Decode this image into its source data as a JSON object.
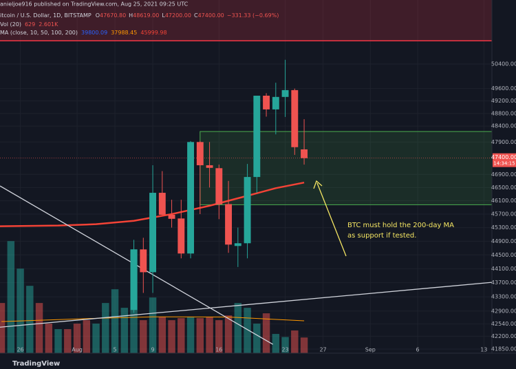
{
  "chart_data": {
    "type": "candlestick",
    "header": {
      "publisher": "anieljoe916 published on TradingView.com, Aug 25, 2021 09:25 UTC",
      "symbol": "itcoin / U.S. Dollar, 1D, BITSTAMP",
      "ohlc": [
        {
          "key": "O",
          "value": "47670.80"
        },
        {
          "key": "H",
          "value": "48619.00"
        },
        {
          "key": "L",
          "value": "47200.00"
        },
        {
          "key": "C",
          "value": "47400.00"
        }
      ],
      "change": "−331.33 (−0.69%)",
      "volume": [
        "Vol (20)",
        "629",
        "2.601K"
      ],
      "ma": [
        "MA (close, 10, 50, 100, 200)",
        "39800.09",
        "37988.45",
        "45999.98"
      ]
    },
    "x": [
      12,
      13,
      14,
      15,
      16,
      17,
      18,
      19,
      20,
      21,
      22,
      23,
      24,
      25,
      26,
      27,
      28,
      29,
      30
    ],
    "open": [
      42930,
      44660,
      44000,
      46340,
      45680,
      45570,
      44540,
      47900,
      47180,
      47090,
      46000,
      44760,
      44840,
      46820,
      49370,
      48930,
      49330,
      49550,
      47670.8
    ],
    "high": [
      44940,
      45000,
      47180,
      47000,
      46130,
      46130,
      47930,
      47930,
      47900,
      47200,
      46700,
      45300,
      47220,
      49370,
      49450,
      49790,
      50540,
      49600,
      48619
    ],
    "low": [
      42850,
      43410,
      43410,
      45700,
      45300,
      44400,
      44400,
      45700,
      46500,
      45550,
      44560,
      44150,
      44400,
      46340,
      48700,
      48140,
      48690,
      47500,
      47200
    ],
    "close": [
      44660,
      44000,
      46340,
      45680,
      45560,
      44540,
      47900,
      47180,
      47100,
      45990,
      44800,
      44840,
      46820,
      49370,
      48930,
      49330,
      49550,
      47740,
      47400
    ],
    "up_color": "#26a69a",
    "down_color": "#ef5350",
    "xlim": [
      -2.15,
      49.85
    ],
    "xticks": [
      {
        "value": 0,
        "label": "26"
      },
      {
        "value": 6,
        "label": "Aug"
      },
      {
        "value": 10,
        "label": "5"
      },
      {
        "value": 14,
        "label": "9"
      },
      {
        "value": 21,
        "label": "16"
      },
      {
        "value": 28,
        "label": "23"
      },
      {
        "value": 32,
        "label": "27"
      },
      {
        "value": 37,
        "label": "Sep"
      },
      {
        "value": 42,
        "label": "6"
      },
      {
        "value": 49,
        "label": "13"
      }
    ],
    "ylim": [
      41737,
      52550
    ],
    "log_scale": true,
    "yticks": [
      {
        "value": 50400,
        "label": "50400.00"
      },
      {
        "value": 49600,
        "label": "49600.00"
      },
      {
        "value": 49200,
        "label": "49200.00"
      },
      {
        "value": 48800,
        "label": "48800.00"
      },
      {
        "value": 48400,
        "label": "48400.00"
      },
      {
        "value": 47900,
        "label": "47900.00"
      },
      {
        "value": 46900,
        "label": "46900.00"
      },
      {
        "value": 46500,
        "label": "46500.00"
      },
      {
        "value": 46100,
        "label": "46100.00"
      },
      {
        "value": 45700,
        "label": "45700.00"
      },
      {
        "value": 45300,
        "label": "45300.00"
      },
      {
        "value": 44900,
        "label": "44900.00"
      },
      {
        "value": 44500,
        "label": "44500.00"
      },
      {
        "value": 44100,
        "label": "44100.00"
      },
      {
        "value": 43700,
        "label": "43700.00"
      },
      {
        "value": 43300,
        "label": "43300.00"
      },
      {
        "value": 42900,
        "label": "42900.00"
      },
      {
        "value": 42540,
        "label": "42540.00"
      },
      {
        "value": 42200,
        "label": "42200.00"
      },
      {
        "value": 41850,
        "label": "41850.00"
      }
    ],
    "grid": true,
    "last_price": {
      "label": "47400.00",
      "countdown": "14:34:15"
    },
    "price_line": {
      "value": 51170,
      "color": "#f23645"
    },
    "ma_line": {
      "color": "#f44336",
      "x": [
        -2.15,
        4,
        8,
        12,
        16,
        20,
        24,
        27,
        30
      ],
      "values": [
        45340,
        45360,
        45400,
        45500,
        45700,
        45950,
        46250,
        46480,
        46650
      ]
    },
    "trendlines": [
      {
        "color": "#d1d4dc",
        "x": [
          -2.15,
          26.7
        ],
        "values": [
          46547,
          41977
        ]
      },
      {
        "color": "#d1d4dc",
        "x": [
          -2.15,
          49.85
        ],
        "values": [
          42451,
          43710
        ]
      }
    ],
    "zone": {
      "color": "#4caf50",
      "x": [
        19,
        49.85
      ],
      "values": [
        48230,
        45980
      ]
    },
    "volume": {
      "x": [
        -2,
        -1,
        0,
        1,
        2,
        3,
        4,
        5,
        6,
        7,
        8,
        9,
        10,
        11,
        12,
        13,
        14,
        15,
        16,
        17,
        18,
        19,
        20,
        21,
        22,
        23,
        24,
        25,
        26,
        27,
        28,
        29,
        30
      ],
      "values": [
        2015,
        4500,
        3395,
        2705,
        2015,
        1187,
        966,
        966,
        1187,
        1325,
        1187,
        2015,
        2567,
        1822,
        4168,
        1325,
        2236,
        1463,
        1325,
        1408,
        1463,
        1408,
        1463,
        1325,
        1518,
        2015,
        1822,
        1187,
        1601,
        773,
        650,
        911,
        629
      ],
      "colors": [
        "#ef535080",
        "#26a69a80",
        "#26a69a80",
        "#26a69a80",
        "#ef535080",
        "#ef535080",
        "#26a69a80",
        "#ef535080",
        "#ef535080",
        "#ef535080",
        "#26a69a80",
        "#26a69a80",
        "#26a69a80",
        "#26a69a80",
        "#26a69a80",
        "#ef535080",
        "#26a69a80",
        "#ef535080",
        "#ef535080",
        "#ef535080",
        "#26a69a80",
        "#ef535080",
        "#ef535080",
        "#ef535080",
        "#ef535080",
        "#26a69a80",
        "#26a69a80",
        "#26a69a80",
        "#ef535080",
        "#26a69a80",
        "#26a69a80",
        "#ef535080",
        "#ef535080"
      ],
      "ylim": [
        0,
        4700
      ]
    },
    "volume_ma": {
      "color": "#ff9800",
      "x": [
        -2,
        8,
        14,
        22,
        30
      ],
      "values": [
        1270,
        1400,
        1460,
        1450,
        1300
      ]
    },
    "annotation": {
      "lines": [
        "BTC must hold the 200-day MA",
        "as support if tested."
      ],
      "color": "#f5e663"
    },
    "brand": "TradingView"
  }
}
